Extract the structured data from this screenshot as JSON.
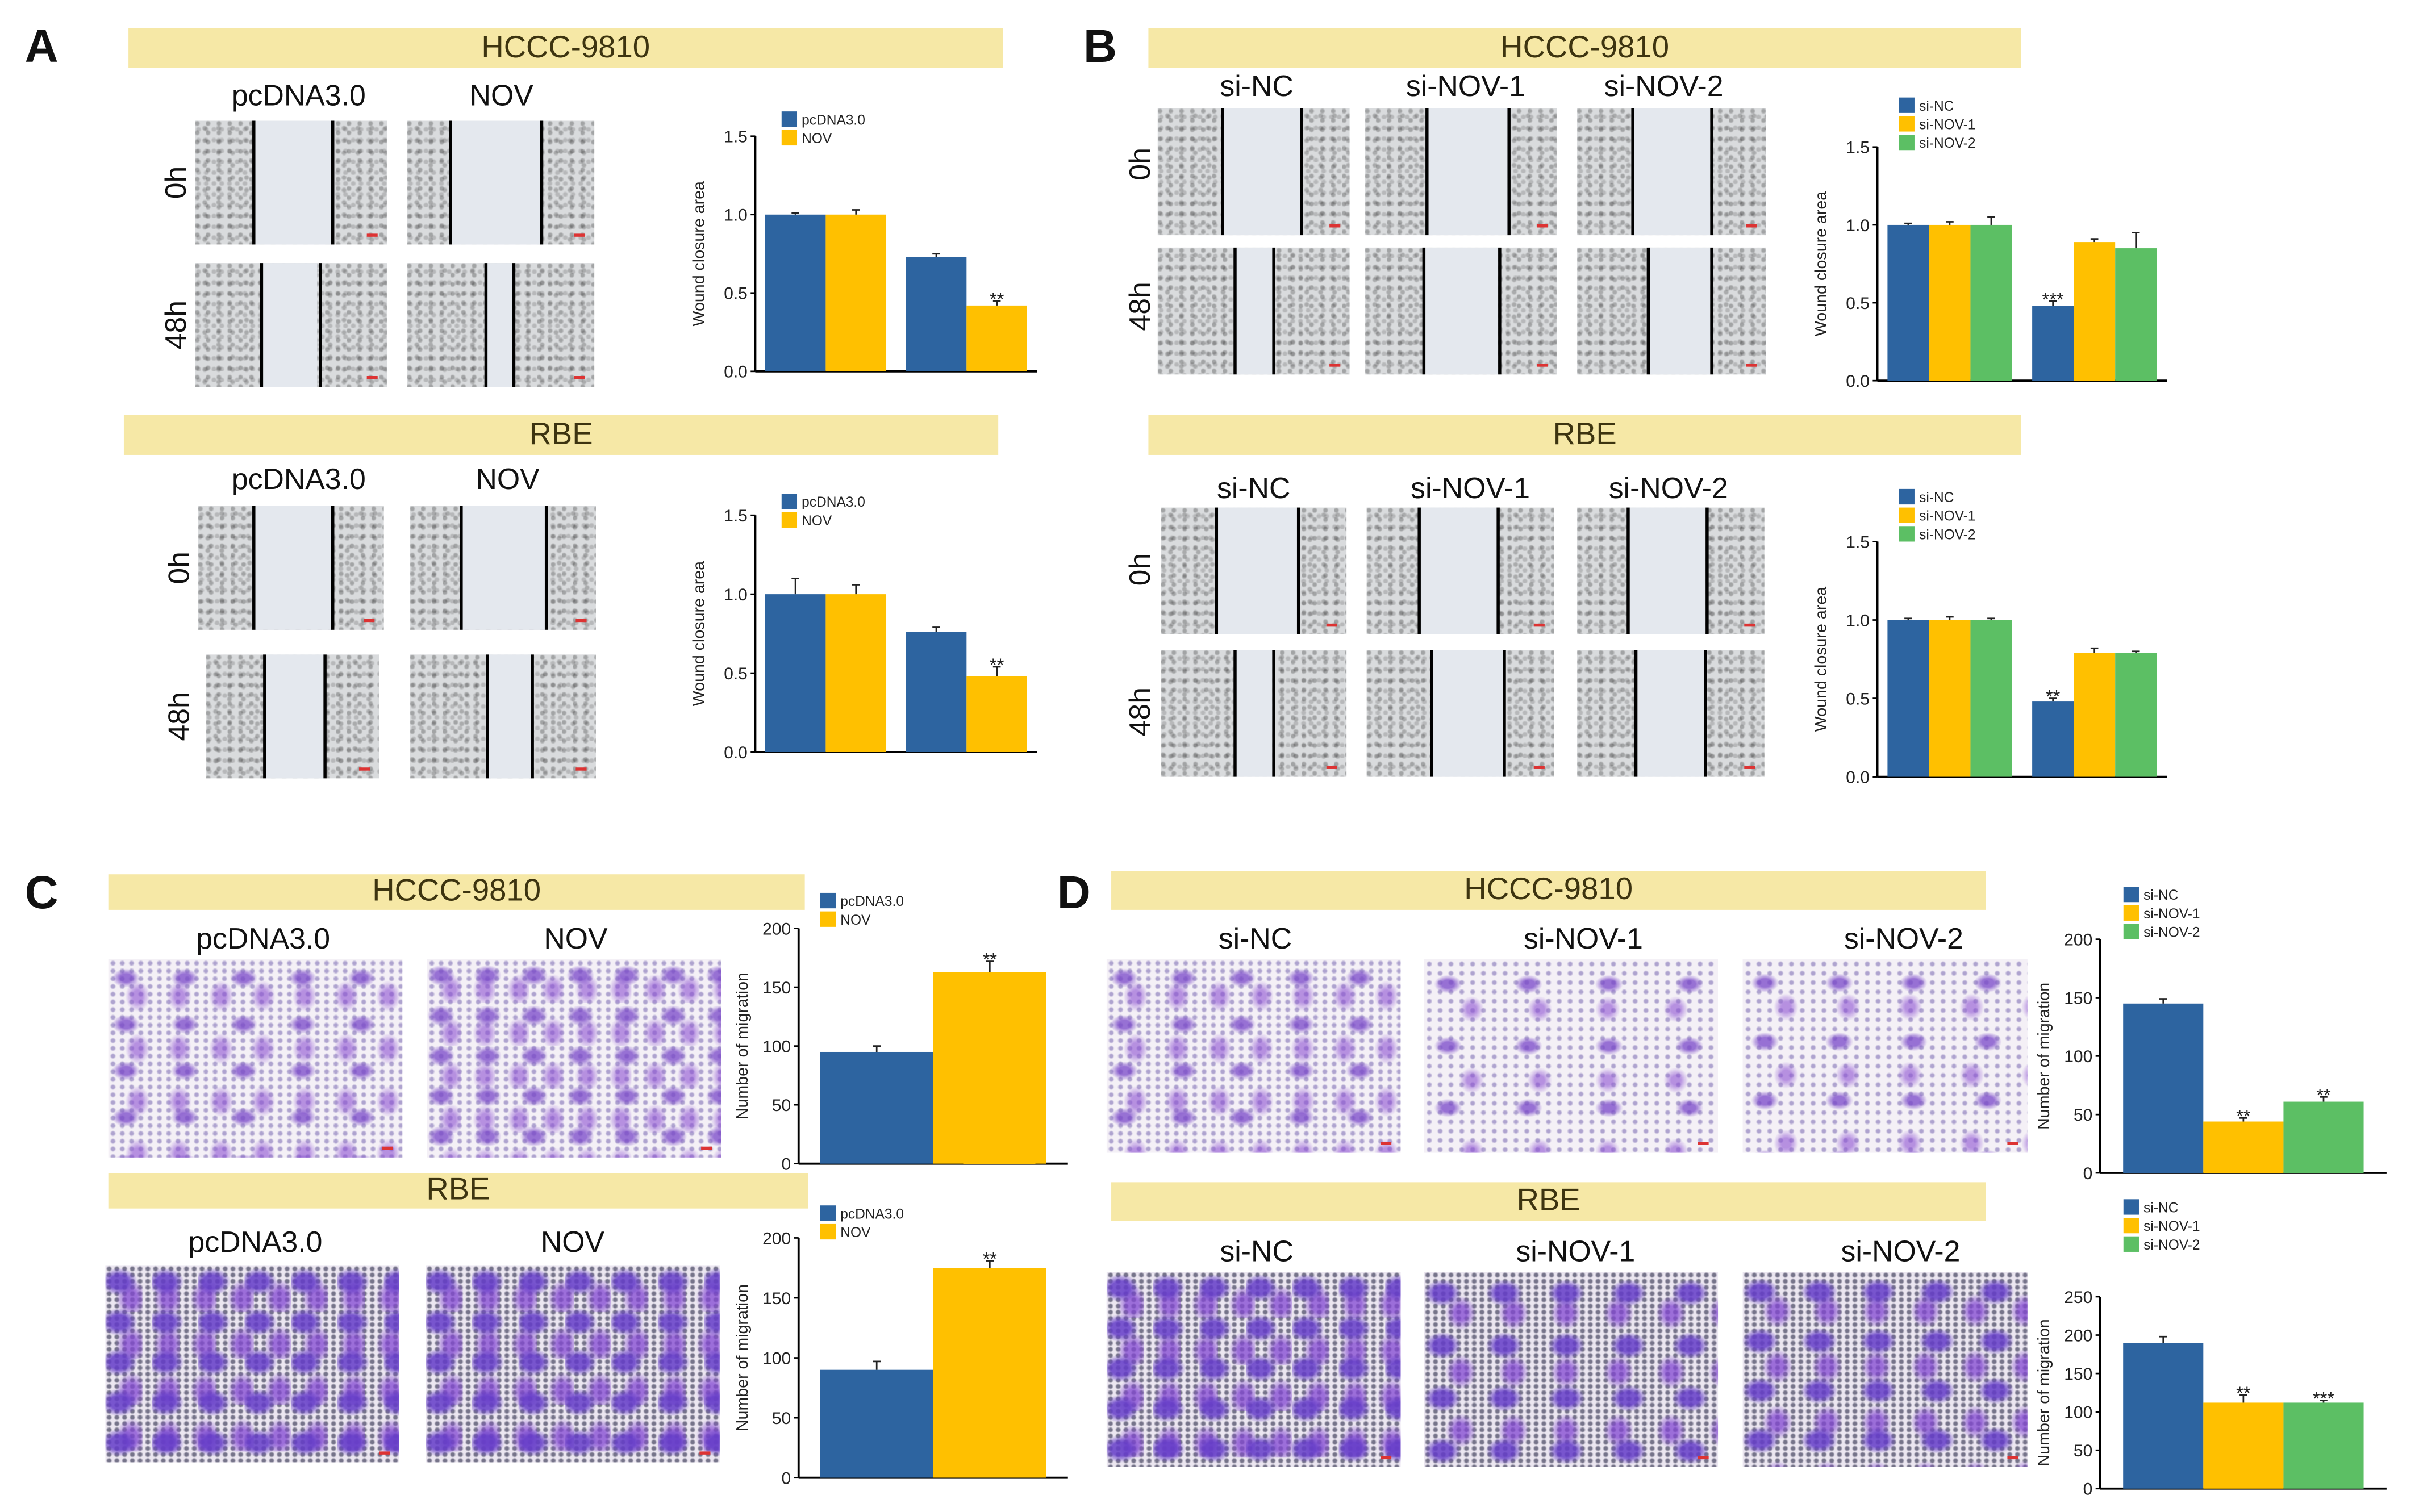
{
  "panels": {
    "A": {
      "label": "A",
      "top": {
        "band": "HCCC-9810",
        "cols": [
          "pcDNA3.0",
          "NOV"
        ],
        "rows": [
          "0h",
          "48h"
        ]
      },
      "bottom": {
        "band": "RBE",
        "cols": [
          "pcDNA3.0",
          "NOV"
        ],
        "rows": [
          "0h",
          "48h"
        ]
      }
    },
    "B": {
      "label": "B",
      "top": {
        "band": "HCCC-9810",
        "cols": [
          "si-NC",
          "si-NOV-1",
          "si-NOV-2"
        ],
        "rows": [
          "0h",
          "48h"
        ]
      },
      "bottom": {
        "band": "RBE",
        "cols": [
          "si-NC",
          "si-NOV-1",
          "si-NOV-2"
        ],
        "rows": [
          "0h",
          "48h"
        ]
      }
    },
    "C": {
      "label": "C",
      "top": {
        "band": "HCCC-9810",
        "cols": [
          "pcDNA3.0",
          "NOV"
        ]
      },
      "bottom": {
        "band": "RBE",
        "cols": [
          "pcDNA3.0",
          "NOV"
        ]
      }
    },
    "D": {
      "label": "D",
      "top": {
        "band": "HCCC-9810",
        "cols": [
          "si-NC",
          "si-NOV-1",
          "si-NOV-2"
        ]
      },
      "bottom": {
        "band": "RBE",
        "cols": [
          "si-NC",
          "si-NOV-1",
          "si-NOV-2"
        ]
      }
    }
  },
  "colors": {
    "blue": "#2d64a0",
    "yellow": "#ffc000",
    "green": "#5cbf64",
    "band": "#f6e8a6"
  },
  "chart_data": [
    {
      "id": "A1",
      "type": "bar",
      "title": "HCCC-9810",
      "ylabel": "Wound closure area",
      "ylim": [
        0,
        1.5
      ],
      "yticks": [
        "0.0",
        "0.5",
        "1.0",
        "1.5"
      ],
      "ytick_values": [
        0,
        0.5,
        1.0,
        1.5
      ],
      "groups": 2,
      "series": [
        {
          "name": "pcDNA3.0",
          "color": "#2d64a0",
          "values": [
            1.0,
            0.73
          ],
          "errors": [
            0.01,
            0.02
          ],
          "sig": [
            "",
            ""
          ]
        },
        {
          "name": "NOV",
          "color": "#ffc000",
          "values": [
            1.0,
            0.42
          ],
          "errors": [
            0.03,
            0.03
          ],
          "sig": [
            "",
            "**"
          ]
        }
      ]
    },
    {
      "id": "A2",
      "type": "bar",
      "title": "RBE",
      "ylabel": "Wound closure area",
      "ylim": [
        0,
        1.5
      ],
      "yticks": [
        "0.0",
        "0.5",
        "1.0",
        "1.5"
      ],
      "ytick_values": [
        0,
        0.5,
        1.0,
        1.5
      ],
      "groups": 2,
      "series": [
        {
          "name": "pcDNA3.0",
          "color": "#2d64a0",
          "values": [
            1.0,
            0.76
          ],
          "errors": [
            0.1,
            0.03
          ],
          "sig": [
            "",
            ""
          ]
        },
        {
          "name": "NOV",
          "color": "#ffc000",
          "values": [
            1.0,
            0.48
          ],
          "errors": [
            0.06,
            0.06
          ],
          "sig": [
            "",
            "**"
          ]
        }
      ]
    },
    {
      "id": "B1",
      "type": "bar",
      "title": "HCCC-9810",
      "ylabel": "Wound closure area",
      "ylim": [
        0,
        1.5
      ],
      "yticks": [
        "0.0",
        "0.5",
        "1.0",
        "1.5"
      ],
      "ytick_values": [
        0,
        0.5,
        1.0,
        1.5
      ],
      "groups": 2,
      "series": [
        {
          "name": "si-NC",
          "color": "#2d64a0",
          "values": [
            1.0,
            0.48
          ],
          "errors": [
            0.01,
            0.03
          ],
          "sig": [
            "",
            "***"
          ]
        },
        {
          "name": "si-NOV-1",
          "color": "#ffc000",
          "values": [
            1.0,
            0.89
          ],
          "errors": [
            0.02,
            0.02
          ],
          "sig": [
            "",
            ""
          ]
        },
        {
          "name": "si-NOV-2",
          "color": "#5cbf64",
          "values": [
            1.0,
            0.85
          ],
          "errors": [
            0.05,
            0.1
          ],
          "sig": [
            "",
            ""
          ]
        }
      ]
    },
    {
      "id": "B2",
      "type": "bar",
      "title": "RBE",
      "ylabel": "Wound closure area",
      "ylim": [
        0,
        1.5
      ],
      "yticks": [
        "0.0",
        "0.5",
        "1.0",
        "1.5"
      ],
      "ytick_values": [
        0,
        0.5,
        1.0,
        1.5
      ],
      "groups": 2,
      "series": [
        {
          "name": "si-NC",
          "color": "#2d64a0",
          "values": [
            1.0,
            0.48
          ],
          "errors": [
            0.01,
            0.02
          ],
          "sig": [
            "",
            "**"
          ]
        },
        {
          "name": "si-NOV-1",
          "color": "#ffc000",
          "values": [
            1.0,
            0.79
          ],
          "errors": [
            0.02,
            0.03
          ],
          "sig": [
            "",
            ""
          ]
        },
        {
          "name": "si-NOV-2",
          "color": "#5cbf64",
          "values": [
            1.0,
            0.79
          ],
          "errors": [
            0.01,
            0.01
          ],
          "sig": [
            "",
            ""
          ]
        }
      ]
    },
    {
      "id": "C1",
      "type": "bar",
      "title": "HCCC-9810",
      "ylabel": "Number of migration",
      "ylim": [
        0,
        200
      ],
      "yticks": [
        "0",
        "50",
        "100",
        "150",
        "200"
      ],
      "ytick_values": [
        0,
        50,
        100,
        150,
        200
      ],
      "groups": 1,
      "series": [
        {
          "name": "pcDNA3.0",
          "color": "#2d64a0",
          "values": [
            95
          ],
          "errors": [
            5
          ],
          "sig": [
            ""
          ]
        },
        {
          "name": "NOV",
          "color": "#ffc000",
          "values": [
            163
          ],
          "errors": [
            9
          ],
          "sig": [
            "**"
          ]
        }
      ]
    },
    {
      "id": "C2",
      "type": "bar",
      "title": "RBE",
      "ylabel": "Number of migration",
      "ylim": [
        0,
        200
      ],
      "yticks": [
        "0",
        "50",
        "100",
        "150",
        "200"
      ],
      "ytick_values": [
        0,
        50,
        100,
        150,
        200
      ],
      "groups": 1,
      "series": [
        {
          "name": "pcDNA3.0",
          "color": "#2d64a0",
          "values": [
            90
          ],
          "errors": [
            7
          ],
          "sig": [
            ""
          ]
        },
        {
          "name": "NOV",
          "color": "#ffc000",
          "values": [
            175
          ],
          "errors": [
            6
          ],
          "sig": [
            "**"
          ]
        }
      ]
    },
    {
      "id": "D1",
      "type": "bar",
      "title": "HCCC-9810",
      "ylabel": "Number of migration",
      "ylim": [
        0,
        200
      ],
      "yticks": [
        "0",
        "50",
        "100",
        "150",
        "200"
      ],
      "ytick_values": [
        0,
        50,
        100,
        150,
        200
      ],
      "groups": 1,
      "series": [
        {
          "name": "si-NC",
          "color": "#2d64a0",
          "values": [
            145
          ],
          "errors": [
            4
          ],
          "sig": [
            ""
          ]
        },
        {
          "name": "si-NOV-1",
          "color": "#ffc000",
          "values": [
            44
          ],
          "errors": [
            3
          ],
          "sig": [
            "**"
          ]
        },
        {
          "name": "si-NOV-2",
          "color": "#5cbf64",
          "values": [
            61
          ],
          "errors": [
            4
          ],
          "sig": [
            "**"
          ]
        }
      ]
    },
    {
      "id": "D2",
      "type": "bar",
      "title": "RBE",
      "ylabel": "Number of migration",
      "ylim": [
        0,
        250
      ],
      "yticks": [
        "0",
        "50",
        "100",
        "150",
        "200",
        "250"
      ],
      "ytick_values": [
        0,
        50,
        100,
        150,
        200,
        250
      ],
      "groups": 1,
      "series": [
        {
          "name": "si-NC",
          "color": "#2d64a0",
          "values": [
            190
          ],
          "errors": [
            8
          ],
          "sig": [
            ""
          ]
        },
        {
          "name": "si-NOV-1",
          "color": "#ffc000",
          "values": [
            112
          ],
          "errors": [
            10
          ],
          "sig": [
            "**"
          ]
        },
        {
          "name": "si-NOV-2",
          "color": "#5cbf64",
          "values": [
            112
          ],
          "errors": [
            3
          ],
          "sig": [
            "***"
          ]
        }
      ]
    }
  ]
}
